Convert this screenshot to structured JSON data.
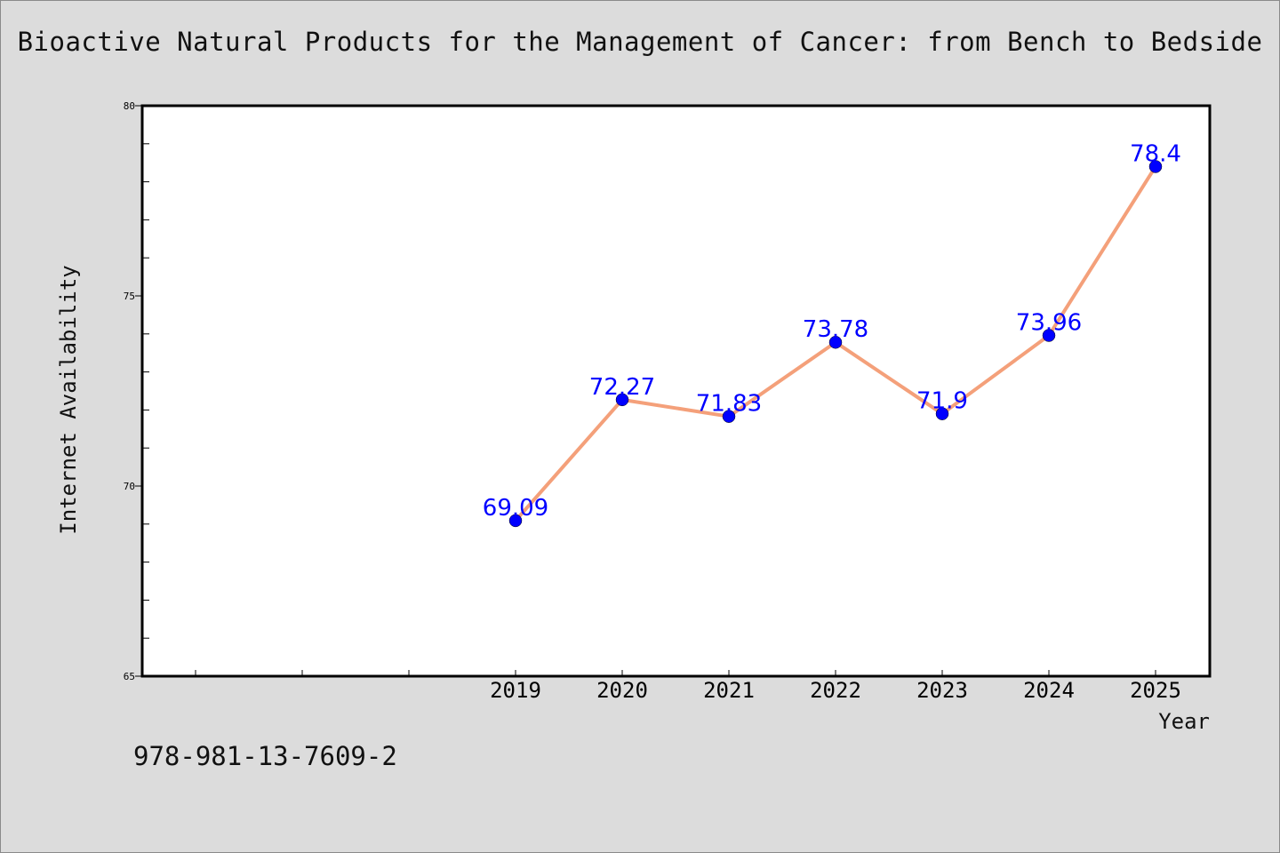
{
  "title": "Bioactive Natural Products for the Management of Cancer: from Bench to Bedside",
  "footnote": "978-981-13-7609-2",
  "colors": {
    "background": "#dcdcdc",
    "plot_background": "#ffffff",
    "line": "#f4a07a",
    "marker": "#0000ff",
    "data_label": "#0000ff"
  },
  "chart_data": {
    "type": "line",
    "title": "Bioactive Natural Products for the Management of Cancer: from Bench to Bedside",
    "xlabel": "Year",
    "ylabel": "Internet Availability",
    "x": [
      "2019",
      "2020",
      "2021",
      "2022",
      "2023",
      "2024",
      "2025"
    ],
    "series": [
      {
        "values": [
          69.09,
          72.27,
          71.83,
          73.78,
          71.9,
          73.96,
          78.4
        ],
        "labels": [
          "69.09",
          "72.27",
          "71.83",
          "73.78",
          "71.9",
          "73.96",
          "78.4"
        ]
      }
    ],
    "ylim": [
      65,
      80
    ],
    "yticks": [
      "65",
      "70",
      "75",
      "80"
    ],
    "grid": false,
    "legend": "none"
  }
}
